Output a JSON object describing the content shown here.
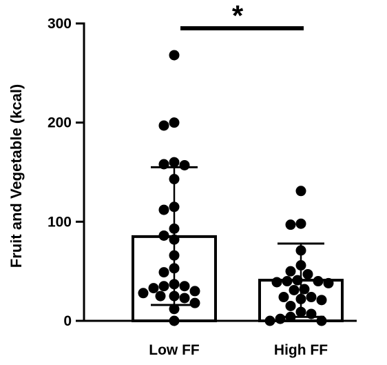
{
  "chart_data": {
    "type": "bar",
    "ylabel": "Fruit and Vegetable (kcal)",
    "ylim": [
      0,
      300
    ],
    "yticks": [
      0,
      100,
      200,
      300
    ],
    "categories": [
      "Low FF",
      "High FF"
    ],
    "values": [
      85,
      41
    ],
    "error_bars": [
      {
        "lower": 16,
        "upper": 155
      },
      {
        "lower": 4,
        "upper": 78
      }
    ],
    "points": [
      [
        268,
        200,
        197,
        160,
        158,
        157,
        143,
        115,
        112,
        93,
        86,
        82,
        66,
        53,
        49,
        37,
        35,
        35,
        33,
        30,
        28,
        25,
        25,
        23,
        18,
        12,
        0
      ],
      [
        131,
        98,
        97,
        71,
        56,
        50,
        47,
        41,
        40,
        40,
        39,
        38,
        32,
        31,
        24,
        24,
        22,
        21,
        15,
        9,
        7,
        4,
        2,
        0,
        0
      ]
    ],
    "significance": {
      "label": "*",
      "between": [
        "Low FF",
        "High FF"
      ]
    },
    "colors": {
      "bar_fill": "#ffffff",
      "bar_edge": "#000000",
      "points": "#000000"
    }
  }
}
